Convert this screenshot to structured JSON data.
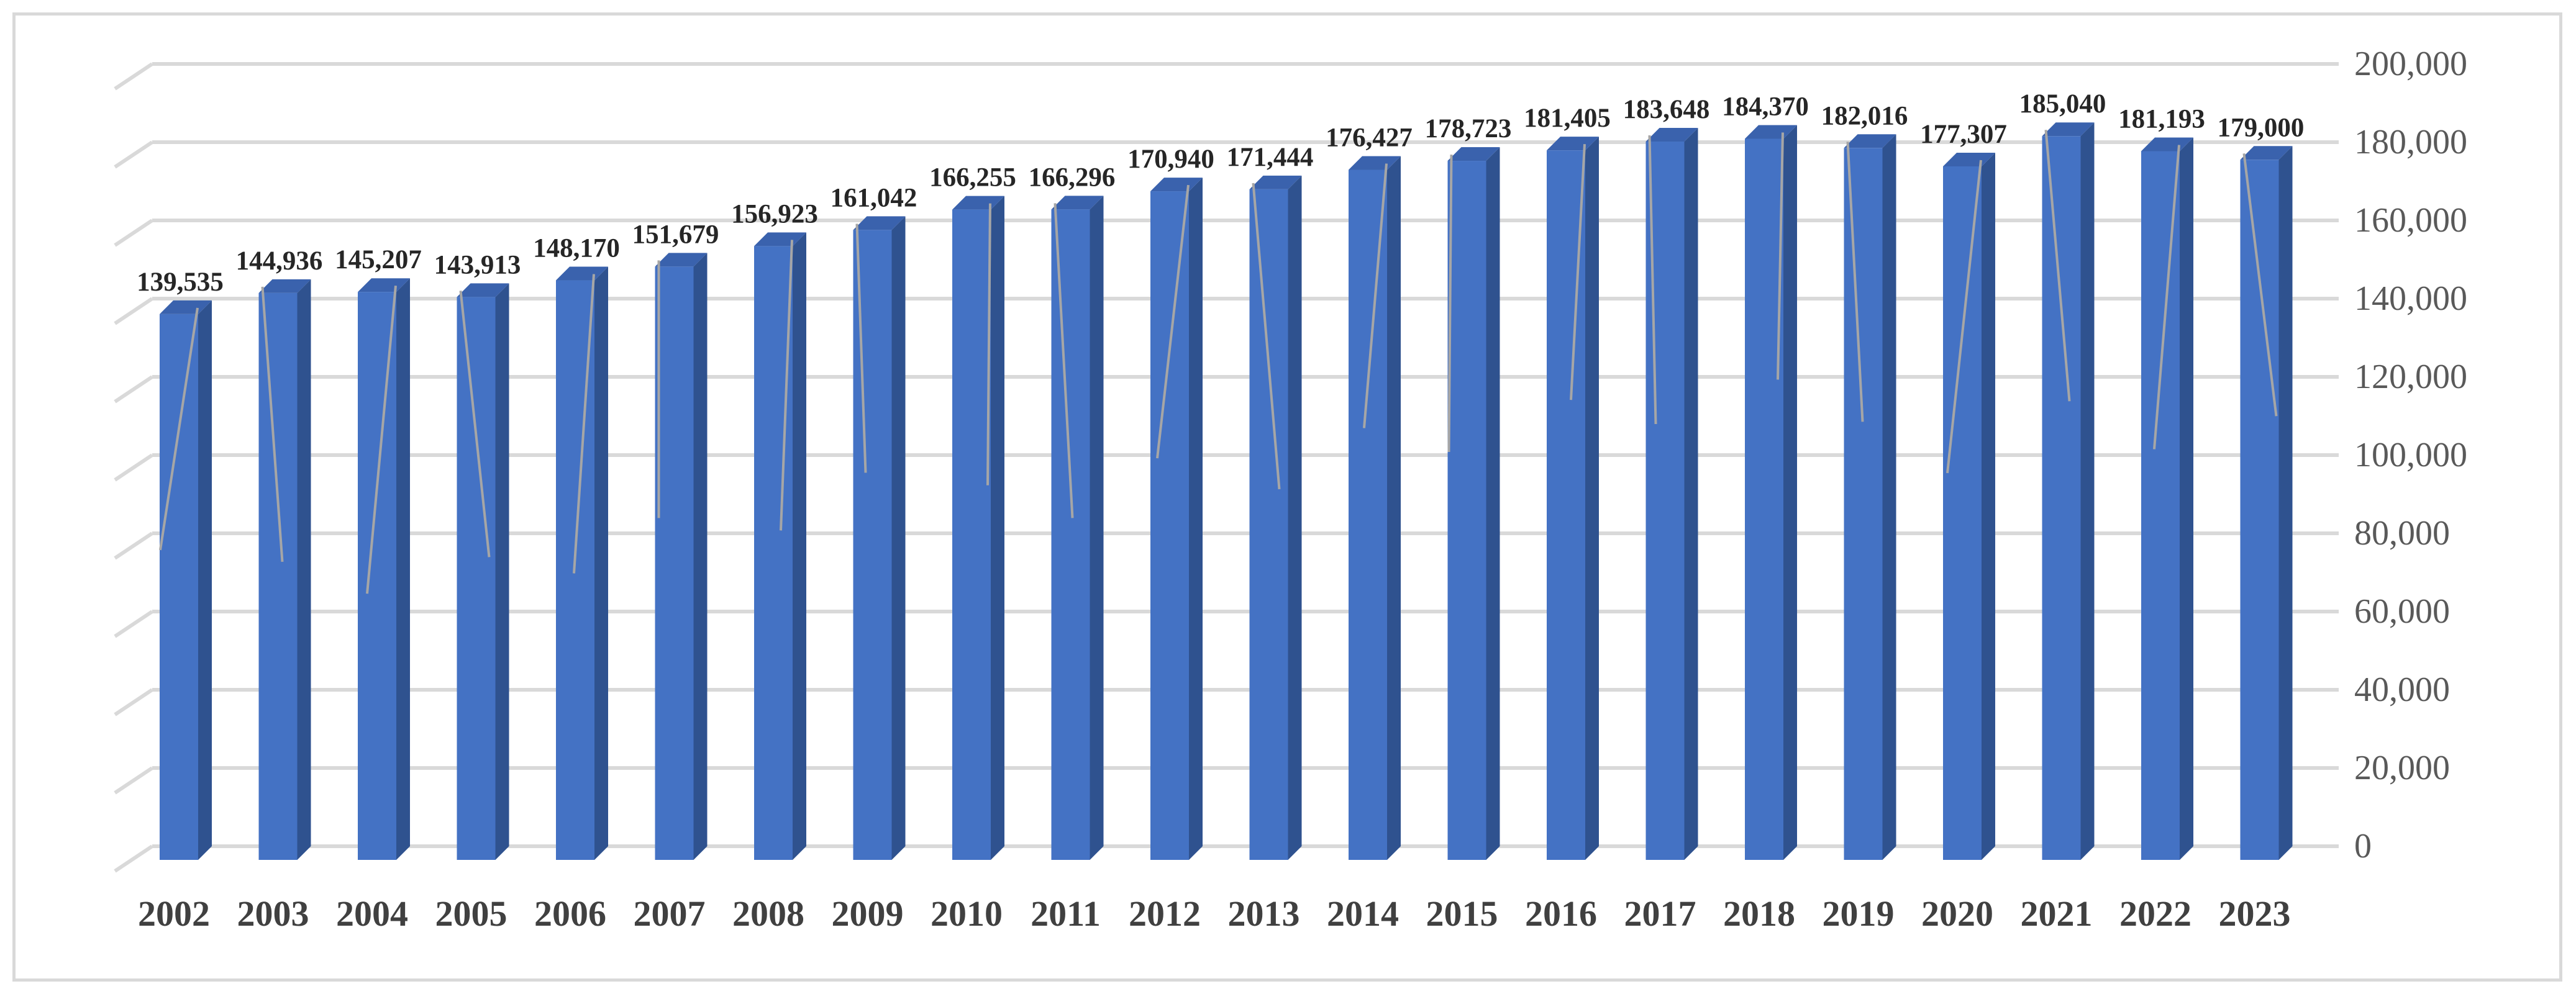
{
  "chart_data": {
    "type": "bar",
    "style": "3d-column",
    "categories": [
      "2002",
      "2003",
      "2004",
      "2005",
      "2006",
      "2007",
      "2008",
      "2009",
      "2010",
      "2011",
      "2012",
      "2013",
      "2014",
      "2015",
      "2016",
      "2017",
      "2018",
      "2019",
      "2020",
      "2021",
      "2022",
      "2023"
    ],
    "values": [
      139535,
      144936,
      145207,
      143913,
      148170,
      151679,
      156923,
      161042,
      166255,
      166296,
      170940,
      171444,
      176427,
      178723,
      181405,
      183648,
      184370,
      182016,
      177307,
      185040,
      181193,
      179000
    ],
    "data_labels": [
      "139,535",
      "144,936",
      "145,207",
      "143,913",
      "148,170",
      "151,679",
      "156,923",
      "161,042",
      "166,255",
      "166,296",
      "170,940",
      "171,444",
      "176,427",
      "178,723",
      "181,405",
      "183,648",
      "184,370",
      "182,016",
      "177,307",
      "185,040",
      "181,193",
      "179,000"
    ],
    "y_ticks": [
      0,
      20000,
      40000,
      60000,
      80000,
      100000,
      120000,
      140000,
      160000,
      180000,
      200000
    ],
    "y_tick_labels": [
      "0",
      "20,000",
      "40,000",
      "60,000",
      "80,000",
      "100,000",
      "120,000",
      "140,000",
      "160,000",
      "180,000",
      "200,000"
    ],
    "ylim": [
      0,
      200000
    ],
    "y_axis_side": "right",
    "grid": true,
    "legend": "none",
    "title": "",
    "xlabel": "",
    "ylabel": "",
    "colors": {
      "bar_front": "#4472c4",
      "bar_side": "#2f528f",
      "bar_top": "#3a62ad",
      "gridline": "#d9d9d9",
      "leader_line": "#a6a6a6"
    }
  }
}
